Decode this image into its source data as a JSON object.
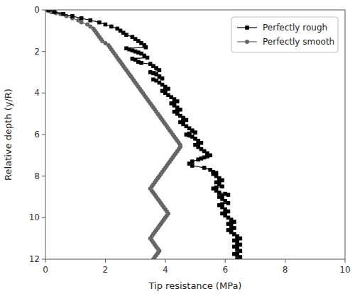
{
  "chart_data": {
    "type": "line",
    "xlabel": "Tip resistance (MPa)",
    "ylabel": "Relative depth (y/R)",
    "xlim": [
      0,
      10
    ],
    "ylim": [
      12,
      0
    ],
    "xticks": [
      0,
      2,
      4,
      6,
      8,
      10
    ],
    "yticks": [
      0,
      2,
      4,
      6,
      8,
      10,
      12
    ],
    "grid": false,
    "legend": "upper-right",
    "series": [
      {
        "name": "Perfectly rough",
        "color": "#000000",
        "marker": "square",
        "line_style": "solid",
        "x": [
          0.1,
          0.3,
          0.6,
          0.9,
          1.2,
          1.5,
          1.8,
          2.0,
          2.2,
          2.4,
          2.5,
          2.6,
          2.7,
          2.9,
          3.0,
          3.1,
          3.2,
          3.3,
          3.35,
          2.7,
          2.8,
          2.9,
          3.0,
          3.1,
          3.2,
          3.3,
          3.4,
          2.9,
          3.0,
          3.1,
          3.2,
          3.5,
          3.6,
          3.7,
          3.8,
          3.5,
          3.6,
          3.7,
          3.8,
          3.9,
          3.6,
          3.7,
          3.8,
          3.9,
          4.0,
          4.1,
          4.0,
          3.9,
          4.0,
          4.1,
          4.2,
          4.3,
          4.4,
          4.3,
          4.2,
          4.3,
          4.4,
          4.5,
          4.4,
          4.3,
          4.4,
          4.5,
          4.6,
          4.7,
          4.6,
          4.5,
          4.6,
          4.7,
          4.8,
          4.9,
          5.0,
          4.8,
          4.7,
          4.8,
          4.9,
          5.0,
          5.1,
          5.2,
          5.1,
          5.0,
          5.1,
          5.2,
          5.3,
          5.4,
          5.5,
          5.4,
          5.3,
          5.2,
          5.1,
          4.9,
          4.8,
          4.9,
          5.3,
          5.5,
          5.6,
          5.7,
          5.6,
          5.7,
          5.8,
          5.9,
          5.8,
          5.7,
          5.8,
          5.9,
          5.7,
          5.6,
          5.7,
          5.8,
          6.0,
          6.1,
          5.9,
          5.8,
          5.9,
          6.0,
          6.1,
          5.9,
          5.8,
          5.9,
          6.0,
          6.1,
          6.0,
          5.9,
          6.0,
          6.1,
          6.2,
          6.3,
          6.2,
          6.1,
          6.2,
          6.3,
          6.2,
          6.1,
          6.2,
          6.3,
          6.4,
          6.5,
          6.4,
          6.3,
          6.4,
          6.5,
          6.4,
          6.3,
          6.4,
          6.5,
          6.4,
          6.3,
          6.4,
          6.5,
          6.4
        ],
        "values": [
          0.0,
          0.1,
          0.2,
          0.3,
          0.4,
          0.5,
          0.6,
          0.7,
          0.8,
          0.9,
          1.0,
          1.1,
          1.2,
          1.3,
          1.4,
          1.5,
          1.6,
          1.7,
          1.8,
          1.85,
          1.9,
          1.95,
          2.0,
          2.05,
          2.1,
          2.2,
          2.3,
          2.35,
          2.4,
          2.5,
          2.55,
          2.6,
          2.7,
          2.8,
          2.9,
          3.0,
          3.05,
          3.1,
          3.2,
          3.3,
          3.35,
          3.4,
          3.5,
          3.6,
          3.7,
          3.8,
          3.85,
          3.9,
          4.0,
          4.1,
          4.2,
          4.3,
          4.4,
          4.45,
          4.5,
          4.6,
          4.7,
          4.8,
          4.85,
          4.9,
          5.0,
          5.1,
          5.2,
          5.3,
          5.35,
          5.4,
          5.5,
          5.6,
          5.7,
          5.8,
          5.9,
          5.95,
          6.0,
          6.05,
          6.1,
          6.2,
          6.3,
          6.4,
          6.45,
          6.5,
          6.6,
          6.7,
          6.8,
          6.9,
          7.0,
          7.05,
          7.1,
          7.15,
          7.2,
          7.3,
          7.4,
          7.5,
          7.6,
          7.7,
          7.8,
          7.85,
          7.9,
          8.0,
          8.1,
          8.2,
          8.25,
          8.3,
          8.4,
          8.5,
          8.55,
          8.6,
          8.7,
          8.8,
          8.85,
          8.9,
          8.95,
          9.0,
          9.1,
          9.2,
          9.3,
          9.35,
          9.4,
          9.5,
          9.6,
          9.7,
          9.75,
          9.8,
          9.9,
          10.0,
          10.1,
          10.2,
          10.25,
          10.3,
          10.4,
          10.5,
          10.55,
          10.6,
          10.7,
          10.8,
          10.9,
          11.0,
          11.05,
          11.1,
          11.2,
          11.3,
          11.35,
          11.4,
          11.5,
          11.6,
          11.7,
          11.75,
          11.8,
          11.9,
          12.0
        ]
      },
      {
        "name": "Perfectly smooth",
        "color": "#666666",
        "marker": "circle",
        "line_style": "solid",
        "x": [
          0.05,
          0.1,
          0.2,
          0.35,
          0.5,
          0.7,
          0.9,
          1.1,
          1.2,
          1.4,
          1.5,
          1.6,
          1.65,
          1.7,
          1.75,
          1.8,
          1.85,
          1.9,
          2.0,
          2.1,
          2.15,
          2.2,
          2.25,
          2.3,
          2.35,
          2.4,
          2.45,
          2.5,
          2.55,
          2.6,
          2.65,
          2.7,
          2.75,
          2.8,
          2.85,
          2.9,
          2.95,
          3.0,
          3.05,
          3.1,
          3.15,
          3.2,
          3.25,
          3.3,
          3.35,
          3.4,
          3.45,
          3.5,
          3.55,
          3.6,
          3.65,
          3.7,
          3.75,
          3.8,
          3.85,
          3.9,
          3.95,
          4.0,
          4.05,
          4.1,
          4.15,
          4.2,
          4.25,
          4.3,
          4.35,
          4.4,
          4.45,
          4.5,
          4.5,
          4.45,
          4.4,
          4.35,
          4.3,
          4.25,
          4.2,
          4.15,
          4.1,
          4.05,
          4.0,
          3.95,
          3.9,
          3.85,
          3.8,
          3.75,
          3.7,
          3.65,
          3.6,
          3.55,
          3.5,
          3.55,
          3.6,
          3.65,
          3.7,
          3.75,
          3.8,
          3.85,
          3.9,
          3.95,
          4.0,
          4.05,
          4.1,
          4.05,
          4.0,
          3.95,
          3.9,
          3.85,
          3.8,
          3.75,
          3.7,
          3.65,
          3.6,
          3.55,
          3.5,
          3.55,
          3.6,
          3.65,
          3.7,
          3.75,
          3.8,
          3.75,
          3.7,
          3.65,
          3.6
        ],
        "values": [
          0.0,
          0.05,
          0.1,
          0.15,
          0.2,
          0.3,
          0.4,
          0.5,
          0.6,
          0.7,
          0.8,
          0.9,
          1.0,
          1.1,
          1.2,
          1.3,
          1.4,
          1.5,
          1.6,
          1.7,
          1.8,
          1.9,
          2.0,
          2.1,
          2.2,
          2.3,
          2.4,
          2.5,
          2.6,
          2.7,
          2.8,
          2.9,
          3.0,
          3.1,
          3.2,
          3.3,
          3.4,
          3.5,
          3.6,
          3.7,
          3.8,
          3.9,
          4.0,
          4.1,
          4.2,
          4.3,
          4.4,
          4.5,
          4.6,
          4.7,
          4.8,
          4.9,
          5.0,
          5.1,
          5.2,
          5.3,
          5.4,
          5.5,
          5.6,
          5.7,
          5.8,
          5.9,
          6.0,
          6.1,
          6.2,
          6.3,
          6.4,
          6.5,
          6.6,
          6.7,
          6.8,
          6.9,
          7.0,
          7.1,
          7.2,
          7.3,
          7.4,
          7.5,
          7.6,
          7.7,
          7.8,
          7.9,
          8.0,
          8.1,
          8.2,
          8.3,
          8.4,
          8.5,
          8.6,
          8.7,
          8.8,
          8.9,
          9.0,
          9.1,
          9.2,
          9.3,
          9.4,
          9.5,
          9.6,
          9.7,
          9.8,
          9.9,
          10.0,
          10.1,
          10.2,
          10.3,
          10.4,
          10.5,
          10.6,
          10.7,
          10.8,
          10.9,
          11.0,
          11.1,
          11.2,
          11.3,
          11.4,
          11.5,
          11.6,
          11.7,
          11.8,
          11.9,
          12.0
        ]
      }
    ]
  }
}
